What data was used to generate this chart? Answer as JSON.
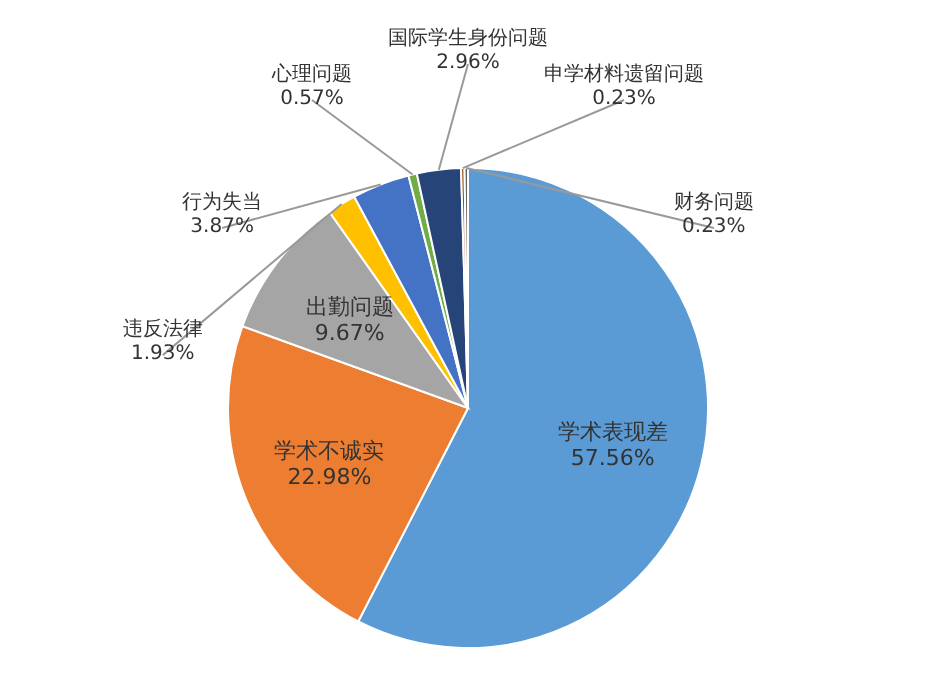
{
  "chart_data": {
    "type": "pie",
    "categories": [
      "学术表现差",
      "学术不诚实",
      "出勤问题",
      "违反法律",
      "行为失当",
      "心理问题",
      "国际学生身份问题",
      "申学材料遗留问题",
      "财务问题"
    ],
    "values": [
      57.56,
      22.98,
      9.67,
      1.93,
      3.87,
      0.57,
      2.96,
      0.23,
      0.23
    ],
    "value_labels": [
      "57.56%",
      "22.98%",
      "9.67%",
      "1.93%",
      "3.87%",
      "0.57%",
      "2.96%",
      "0.23%",
      "0.23%"
    ],
    "colors": [
      "#5b9bd5",
      "#ed7d31",
      "#a5a5a5",
      "#ffc000",
      "#4472c4",
      "#70ad47",
      "#264478",
      "#9e480e",
      "#636363"
    ],
    "legend": false
  }
}
